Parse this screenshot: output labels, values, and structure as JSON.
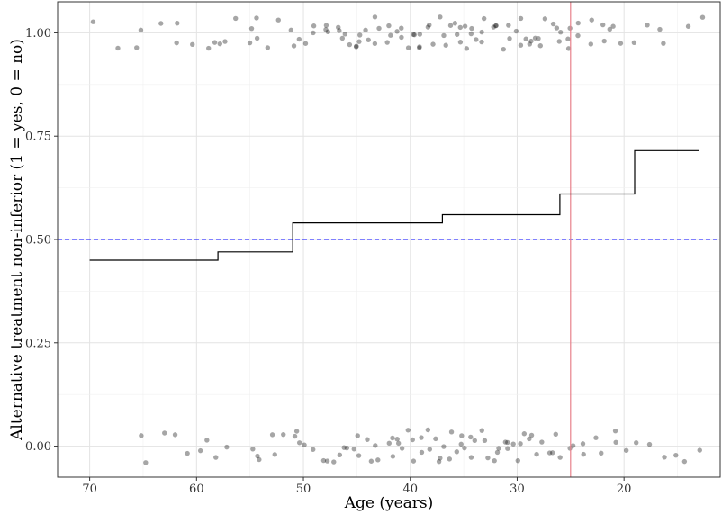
{
  "chart_data": {
    "type": "scatter",
    "xlabel": "Age (years)",
    "ylabel": "Alternative treatment non-inferior (1 = yes, 0 = no)",
    "xlim": [
      73,
      11
    ],
    "ylim": [
      -0.075,
      1.075
    ],
    "x_reversed": true,
    "x_ticks": [
      70,
      60,
      50,
      40,
      30,
      20
    ],
    "x_tick_labels": [
      "70",
      "60",
      "50",
      "40",
      "30",
      "20"
    ],
    "y_ticks": [
      0,
      0.25,
      0.5,
      0.75,
      1.0
    ],
    "y_tick_labels": [
      "0.00",
      "0.25",
      "0.50",
      "0.75",
      "1.00"
    ],
    "grid": true,
    "reference_lines": {
      "horizontal": {
        "y": 0.5,
        "color": "#0000ff",
        "style": "dashed"
      },
      "vertical": {
        "x": 25,
        "color": "#e8808a",
        "style": "solid"
      }
    },
    "step_line": {
      "color": "#000000",
      "x": [
        70,
        58,
        58,
        51,
        51,
        37,
        37,
        26,
        26,
        19,
        19,
        13
      ],
      "y": [
        0.45,
        0.45,
        0.47,
        0.47,
        0.54,
        0.54,
        0.56,
        0.56,
        0.61,
        0.61,
        0.715,
        0.715
      ]
    },
    "points": {
      "color": "#000000",
      "opacity": 0.35,
      "jitter": 0.04,
      "outcome_1_ages": [
        70,
        67,
        66,
        65,
        63,
        62,
        62,
        60,
        59,
        58,
        58,
        57,
        56,
        55,
        55,
        54,
        54,
        53,
        52,
        51,
        51,
        50,
        50,
        49,
        49,
        48,
        48,
        48,
        47,
        47,
        46,
        46,
        46,
        45,
        45,
        45,
        45,
        44,
        44,
        43,
        43,
        43,
        42,
        42,
        42,
        41,
        41,
        41,
        40,
        40,
        40,
        39,
        39,
        39,
        38,
        38,
        38,
        37,
        37,
        37,
        36,
        36,
        36,
        35,
        35,
        35,
        35,
        34,
        34,
        34,
        33,
        33,
        33,
        32,
        32,
        32,
        31,
        31,
        31,
        30,
        30,
        30,
        29,
        29,
        29,
        28,
        28,
        28,
        27,
        27,
        26,
        26,
        26,
        25,
        25,
        25,
        24,
        24,
        23,
        23,
        22,
        22,
        21,
        21,
        20,
        19,
        18,
        17,
        16,
        14,
        13
      ],
      "outcome_0_ages": [
        65,
        65,
        63,
        62,
        61,
        60,
        59,
        58,
        57,
        55,
        54,
        54,
        53,
        53,
        52,
        51,
        51,
        50,
        50,
        49,
        48,
        48,
        47,
        47,
        46,
        46,
        45,
        45,
        45,
        44,
        44,
        43,
        43,
        42,
        42,
        42,
        41,
        41,
        41,
        40,
        40,
        40,
        39,
        39,
        38,
        38,
        38,
        37,
        37,
        37,
        36,
        36,
        36,
        35,
        35,
        35,
        34,
        34,
        34,
        33,
        33,
        33,
        32,
        32,
        32,
        31,
        31,
        31,
        30,
        30,
        30,
        29,
        29,
        29,
        28,
        28,
        27,
        27,
        26,
        26,
        25,
        25,
        24,
        24,
        23,
        22,
        21,
        21,
        20,
        19,
        18,
        16,
        15,
        14,
        13
      ]
    }
  }
}
